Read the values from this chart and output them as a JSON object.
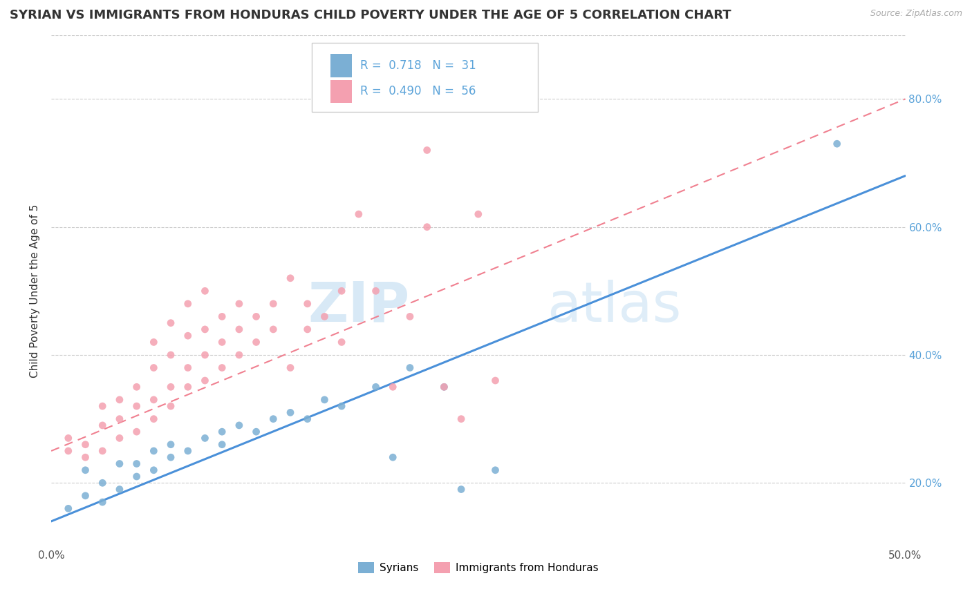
{
  "title": "SYRIAN VS IMMIGRANTS FROM HONDURAS CHILD POVERTY UNDER THE AGE OF 5 CORRELATION CHART",
  "source": "Source: ZipAtlas.com",
  "ylabel": "Child Poverty Under the Age of 5",
  "xlim": [
    0.0,
    0.5
  ],
  "ylim": [
    0.1,
    0.9
  ],
  "yticks": [
    0.2,
    0.4,
    0.6,
    0.8
  ],
  "ytick_labels_right": [
    "20.0%",
    "40.0%",
    "60.0%",
    "80.0%"
  ],
  "xticks": [
    0.0,
    0.1,
    0.2,
    0.3,
    0.4,
    0.5
  ],
  "xtick_labels": [
    "0.0%",
    "",
    "",
    "",
    "",
    "50.0%"
  ],
  "syrians_color": "#7bafd4",
  "honduras_color": "#f4a0b0",
  "trendline_syrians_color": "#4a90d9",
  "trendline_honduras_color": "#f08090",
  "watermark_zip": "ZIP",
  "watermark_atlas": "atlas",
  "syrians_scatter": [
    [
      0.01,
      0.16
    ],
    [
      0.02,
      0.18
    ],
    [
      0.02,
      0.22
    ],
    [
      0.03,
      0.17
    ],
    [
      0.03,
      0.2
    ],
    [
      0.04,
      0.19
    ],
    [
      0.04,
      0.23
    ],
    [
      0.05,
      0.21
    ],
    [
      0.05,
      0.23
    ],
    [
      0.06,
      0.22
    ],
    [
      0.06,
      0.25
    ],
    [
      0.07,
      0.24
    ],
    [
      0.07,
      0.26
    ],
    [
      0.08,
      0.25
    ],
    [
      0.09,
      0.27
    ],
    [
      0.1,
      0.28
    ],
    [
      0.1,
      0.26
    ],
    [
      0.11,
      0.29
    ],
    [
      0.12,
      0.28
    ],
    [
      0.13,
      0.3
    ],
    [
      0.14,
      0.31
    ],
    [
      0.15,
      0.3
    ],
    [
      0.16,
      0.33
    ],
    [
      0.17,
      0.32
    ],
    [
      0.19,
      0.35
    ],
    [
      0.2,
      0.24
    ],
    [
      0.21,
      0.38
    ],
    [
      0.23,
      0.35
    ],
    [
      0.24,
      0.19
    ],
    [
      0.26,
      0.22
    ],
    [
      0.46,
      0.73
    ]
  ],
  "honduras_scatter": [
    [
      0.01,
      0.25
    ],
    [
      0.01,
      0.27
    ],
    [
      0.02,
      0.24
    ],
    [
      0.02,
      0.26
    ],
    [
      0.03,
      0.25
    ],
    [
      0.03,
      0.29
    ],
    [
      0.03,
      0.32
    ],
    [
      0.04,
      0.27
    ],
    [
      0.04,
      0.3
    ],
    [
      0.04,
      0.33
    ],
    [
      0.05,
      0.28
    ],
    [
      0.05,
      0.32
    ],
    [
      0.05,
      0.35
    ],
    [
      0.06,
      0.3
    ],
    [
      0.06,
      0.33
    ],
    [
      0.06,
      0.38
    ],
    [
      0.06,
      0.42
    ],
    [
      0.07,
      0.32
    ],
    [
      0.07,
      0.35
    ],
    [
      0.07,
      0.4
    ],
    [
      0.07,
      0.45
    ],
    [
      0.08,
      0.35
    ],
    [
      0.08,
      0.38
    ],
    [
      0.08,
      0.43
    ],
    [
      0.08,
      0.48
    ],
    [
      0.09,
      0.36
    ],
    [
      0.09,
      0.4
    ],
    [
      0.09,
      0.44
    ],
    [
      0.09,
      0.5
    ],
    [
      0.1,
      0.38
    ],
    [
      0.1,
      0.42
    ],
    [
      0.1,
      0.46
    ],
    [
      0.11,
      0.4
    ],
    [
      0.11,
      0.44
    ],
    [
      0.11,
      0.48
    ],
    [
      0.12,
      0.42
    ],
    [
      0.12,
      0.46
    ],
    [
      0.13,
      0.44
    ],
    [
      0.13,
      0.48
    ],
    [
      0.14,
      0.38
    ],
    [
      0.14,
      0.52
    ],
    [
      0.15,
      0.44
    ],
    [
      0.15,
      0.48
    ],
    [
      0.16,
      0.46
    ],
    [
      0.17,
      0.42
    ],
    [
      0.17,
      0.5
    ],
    [
      0.18,
      0.62
    ],
    [
      0.19,
      0.5
    ],
    [
      0.2,
      0.35
    ],
    [
      0.21,
      0.46
    ],
    [
      0.22,
      0.6
    ],
    [
      0.23,
      0.35
    ],
    [
      0.24,
      0.3
    ],
    [
      0.25,
      0.62
    ],
    [
      0.26,
      0.36
    ],
    [
      0.22,
      0.72
    ]
  ],
  "title_fontsize": 13,
  "axis_label_fontsize": 11,
  "tick_fontsize": 11,
  "legend_R1": "R =  0.718",
  "legend_N1": "N =  31",
  "legend_R2": "R =  0.490",
  "legend_N2": "N =  56"
}
